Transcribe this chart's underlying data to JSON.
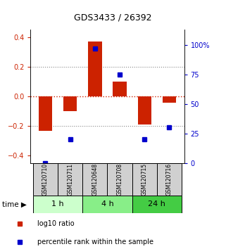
{
  "title": "GDS3433 / 26392",
  "samples": [
    "GSM120710",
    "GSM120711",
    "GSM120648",
    "GSM120708",
    "GSM120715",
    "GSM120716"
  ],
  "groups": [
    {
      "label": "1 h",
      "indices": [
        0,
        1
      ],
      "color": "#ccffcc"
    },
    {
      "label": "4 h",
      "indices": [
        2,
        3
      ],
      "color": "#88ee88"
    },
    {
      "label": "24 h",
      "indices": [
        4,
        5
      ],
      "color": "#44cc44"
    }
  ],
  "log10_ratio": [
    -0.23,
    -0.1,
    0.37,
    0.1,
    -0.19,
    -0.04
  ],
  "percentile_rank": [
    0.0,
    20.0,
    97.0,
    75.0,
    20.0,
    30.0
  ],
  "bar_color": "#cc2200",
  "dot_color": "#0000cc",
  "ylim_left": [
    -0.45,
    0.45
  ],
  "ylim_right": [
    0,
    112.5
  ],
  "yticks_left": [
    -0.4,
    -0.2,
    0.0,
    0.2,
    0.4
  ],
  "yticks_right": [
    0,
    25,
    50,
    75,
    100
  ],
  "yticklabels_right": [
    "0",
    "25",
    "50",
    "75",
    "100%"
  ],
  "hline_zero_color": "#cc2200",
  "hline_dotted_color": "#888888",
  "background_color": "#ffffff"
}
